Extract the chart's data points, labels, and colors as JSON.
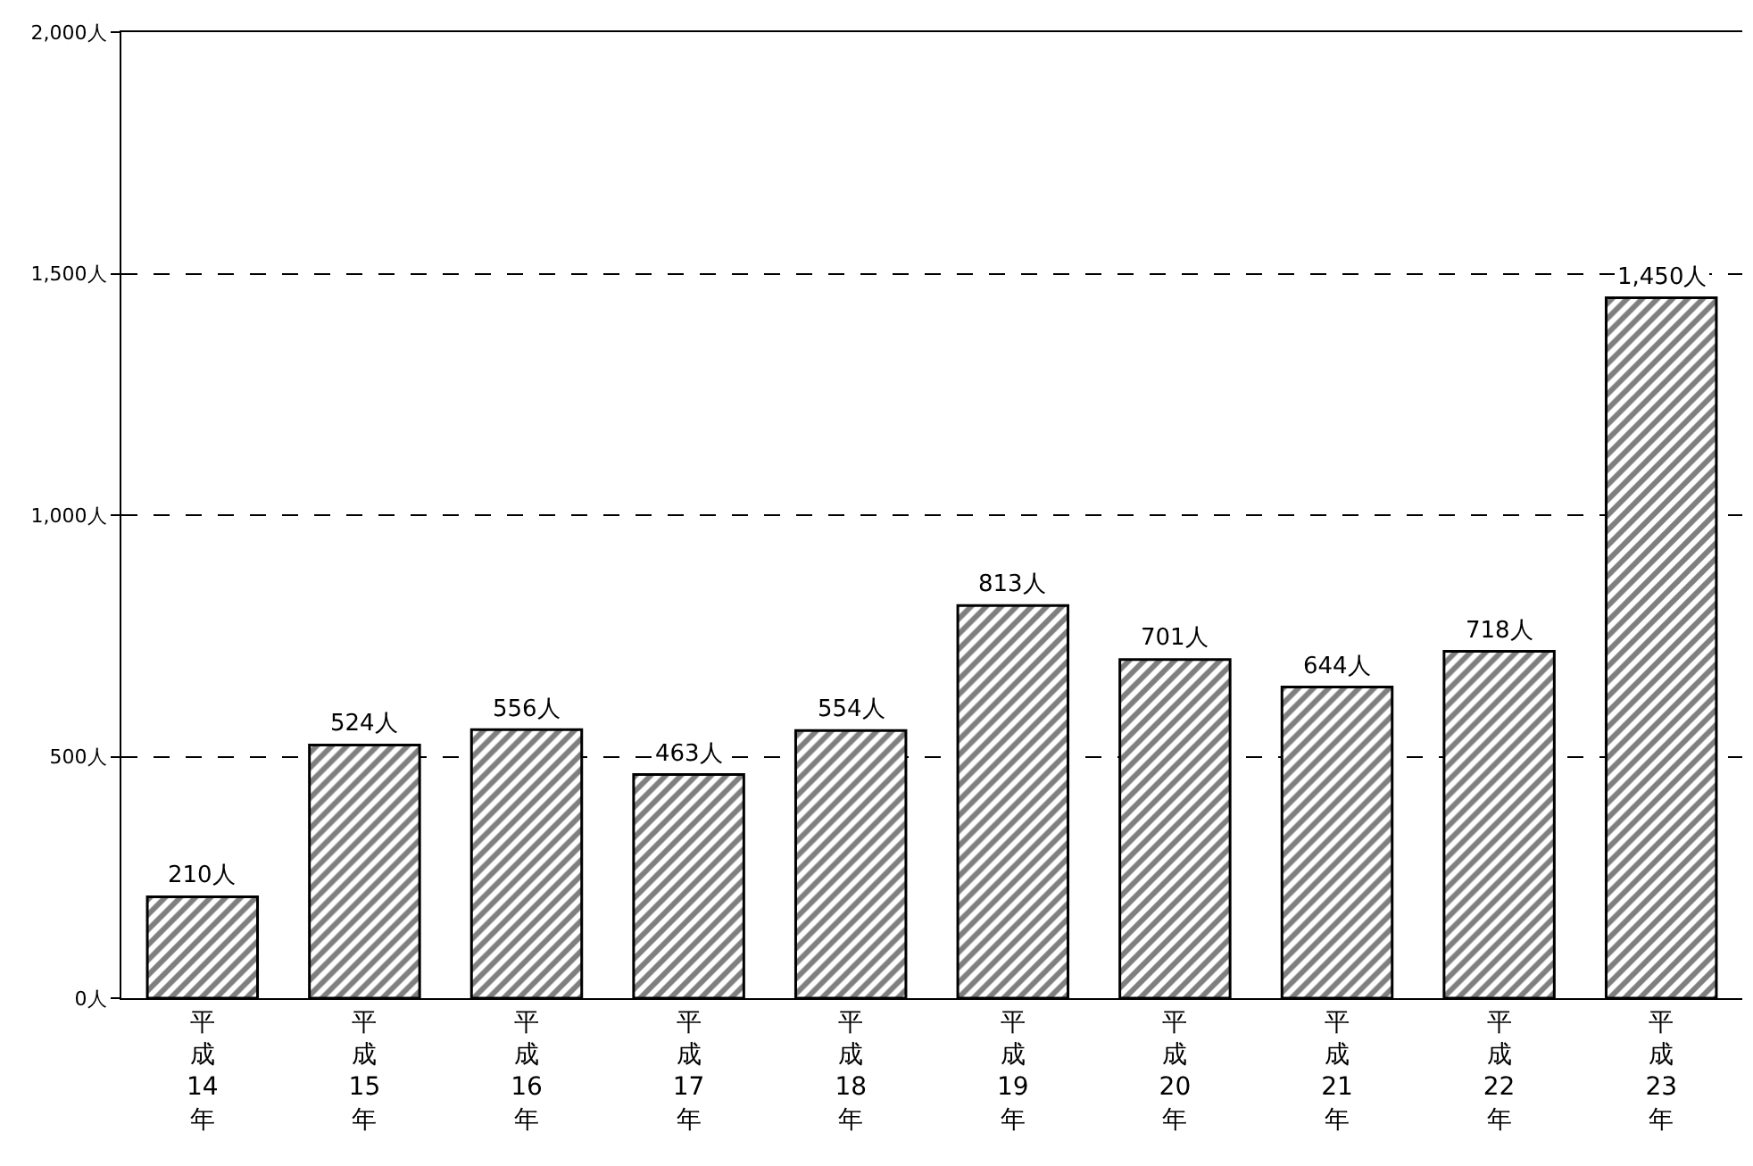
{
  "chart_data": {
    "type": "bar",
    "categories": [
      "平成14年",
      "平成15年",
      "平成16年",
      "平成17年",
      "平成18年",
      "平成19年",
      "平成20年",
      "平成21年",
      "平成22年",
      "平成23年"
    ],
    "values": [
      210,
      524,
      556,
      463,
      554,
      813,
      701,
      644,
      718,
      1450
    ],
    "value_labels": [
      "210人",
      "524人",
      "556人",
      "463人",
      "554人",
      "813人",
      "701人",
      "644人",
      "718人",
      "1,450人"
    ],
    "color": "#000000",
    "ylim": [
      0,
      2000
    ],
    "yticks": [
      {
        "value": 0,
        "label": "0人"
      },
      {
        "value": 500,
        "label": "500人"
      },
      {
        "value": 1000,
        "label": "1,000人"
      },
      {
        "value": 1500,
        "label": "1,500人"
      },
      {
        "value": 2000,
        "label": "2,000人"
      }
    ],
    "grid": "y",
    "line_style": "dashed"
  }
}
